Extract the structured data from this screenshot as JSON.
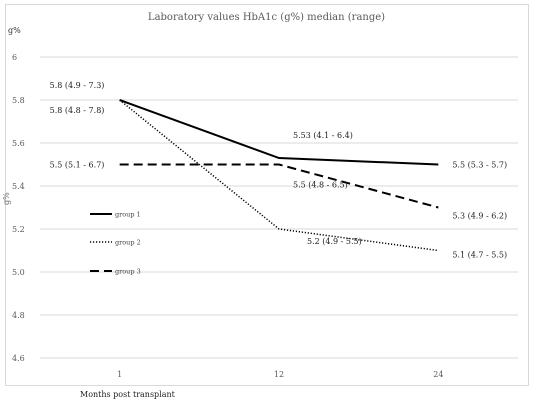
{
  "chart_data": {
    "type": "line",
    "title": "Laboratory values HbA1c (g%) median (range)",
    "xlabel": "Months post transplant",
    "ylabel": "g%",
    "ylabel_side": "g%",
    "x": [
      "1",
      "12",
      "24"
    ],
    "ylim": [
      4.6,
      6.0
    ],
    "yticks": [
      "6",
      "5.8",
      "5.6",
      "5.4",
      "5.2",
      "5.0",
      "4.8",
      "4.6"
    ],
    "grid": true,
    "legend_position": "left-middle",
    "series": [
      {
        "name": "group 1",
        "style": "solid",
        "color": "#000000",
        "values": [
          5.8,
          5.53,
          5.5
        ],
        "labels": [
          "5.8 (4.9 - 7.3)",
          "5.53 (4.1 - 6.4)",
          "5.5 (5.3 - 5.7)"
        ]
      },
      {
        "name": "group 2",
        "style": "dotted",
        "color": "#000000",
        "values": [
          5.8,
          5.2,
          5.1
        ],
        "labels": [
          "5.8 (4.8 - 7.8)",
          "5.2 (4.9 - 5.5)",
          "5.1 (4.7 - 5.5)"
        ]
      },
      {
        "name": "group 3",
        "style": "dashed",
        "color": "#000000",
        "values": [
          5.5,
          5.5,
          5.3
        ],
        "labels": [
          "5.5 (5.1 - 6.7)",
          "5.5 (4.8 - 6.5)",
          "5.3 (4.9 - 6.2)"
        ]
      }
    ]
  }
}
